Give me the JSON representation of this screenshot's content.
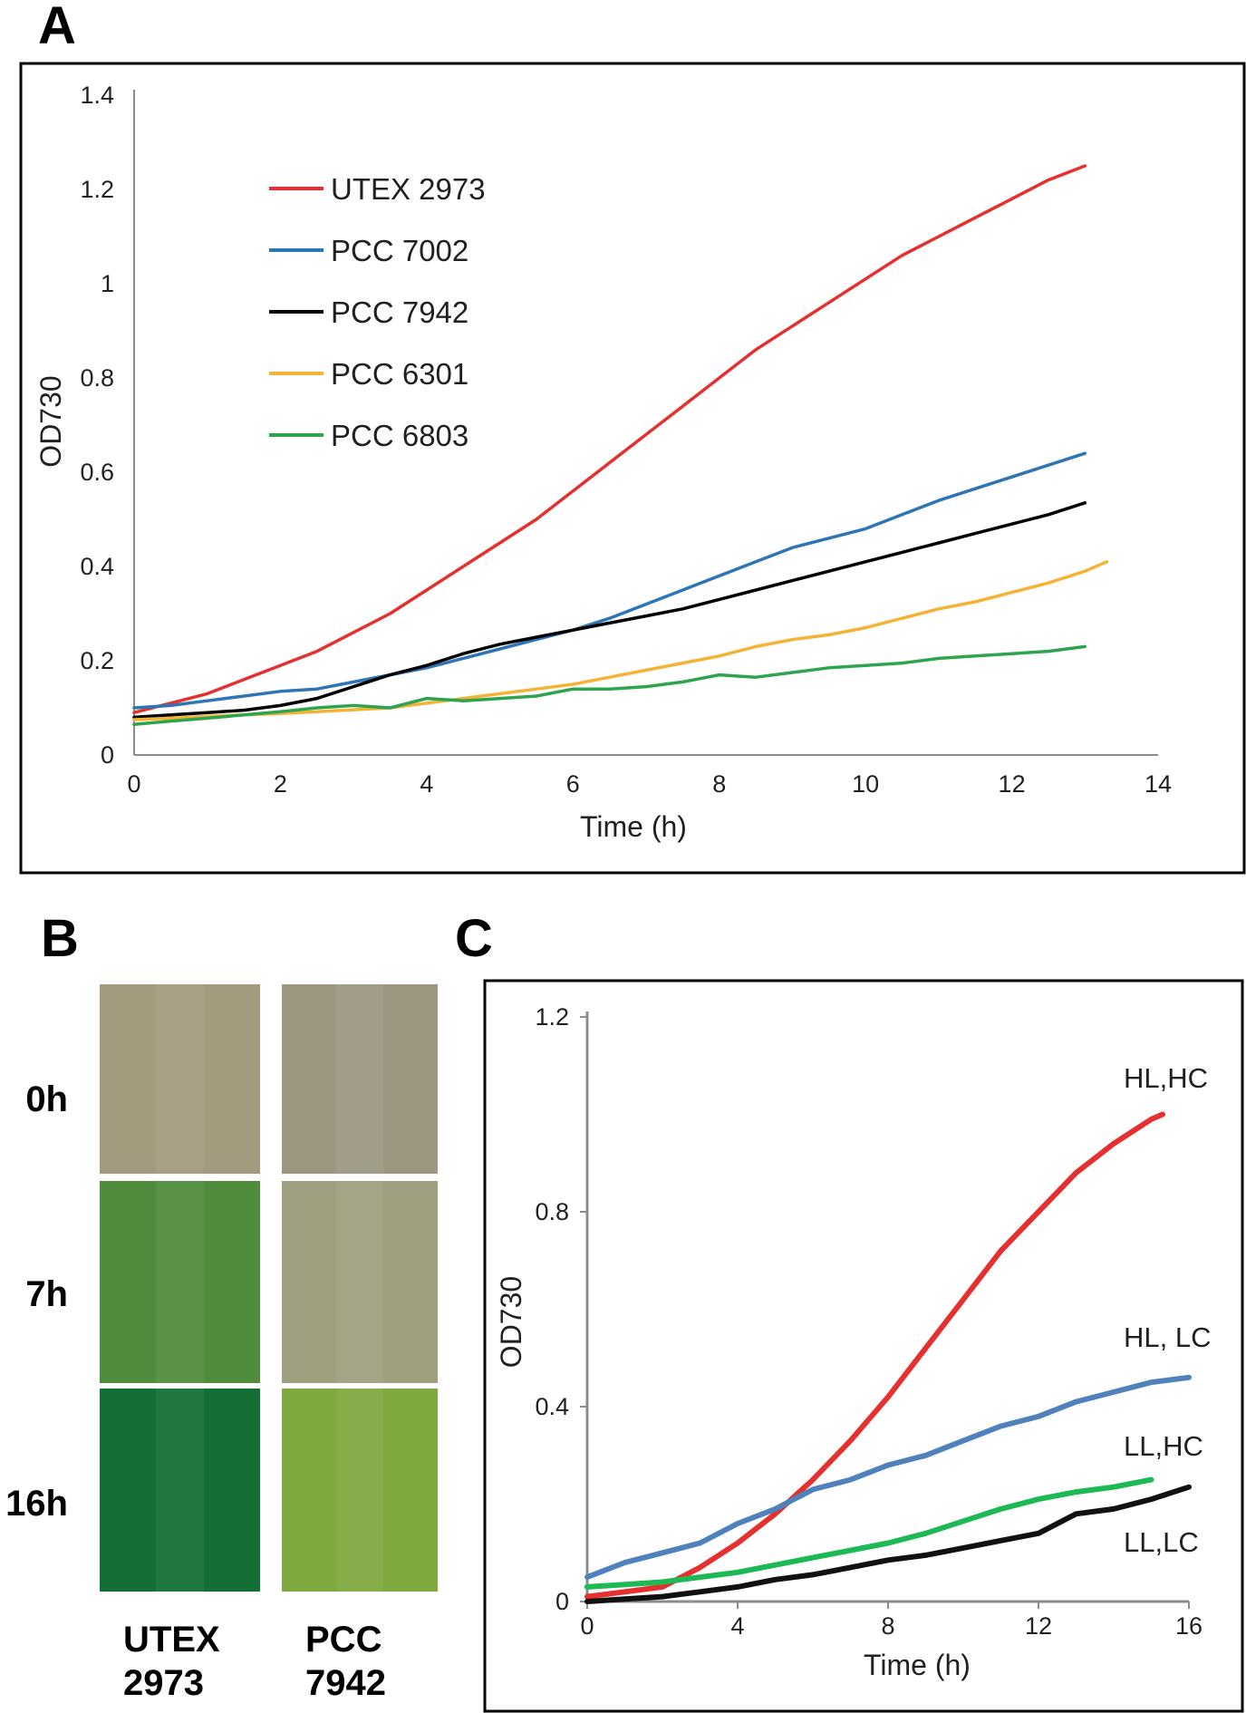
{
  "panels": {
    "a": "A",
    "b": "B",
    "c": "C"
  },
  "chart_data": [
    {
      "panel": "A",
      "type": "line",
      "title": "",
      "xlabel": "Time (h)",
      "ylabel": "OD730",
      "xlim": [
        0,
        14
      ],
      "ylim": [
        0,
        1.4
      ],
      "xticks": [
        "0",
        "2",
        "4",
        "6",
        "8",
        "10",
        "12",
        "14"
      ],
      "yticks": [
        "0",
        "0.2",
        "0.4",
        "0.6",
        "0.8",
        "1",
        "1.2",
        "1.4"
      ],
      "grid": false,
      "legend_position": "top-left",
      "series": [
        {
          "name": "UTEX 2973",
          "color": "#e4312f",
          "x": [
            0,
            0.5,
            1,
            1.5,
            2,
            2.5,
            3,
            3.5,
            4,
            4.5,
            5,
            5.5,
            6,
            6.5,
            7,
            7.5,
            8,
            8.5,
            9,
            9.5,
            10,
            10.5,
            11,
            11.5,
            12,
            12.5,
            13
          ],
          "y": [
            0.09,
            0.11,
            0.13,
            0.16,
            0.19,
            0.22,
            0.26,
            0.3,
            0.35,
            0.4,
            0.45,
            0.5,
            0.56,
            0.62,
            0.68,
            0.74,
            0.8,
            0.86,
            0.91,
            0.96,
            1.01,
            1.06,
            1.1,
            1.14,
            1.18,
            1.22,
            1.25
          ]
        },
        {
          "name": "PCC 7002",
          "color": "#2e75b6",
          "x": [
            0,
            0.5,
            1,
            1.5,
            2,
            2.5,
            3,
            3.5,
            4,
            4.5,
            5,
            5.5,
            6,
            6.5,
            7,
            7.5,
            8,
            8.5,
            9,
            9.5,
            10,
            10.5,
            11,
            11.5,
            12,
            12.5,
            13
          ],
          "y": [
            0.1,
            0.105,
            0.115,
            0.125,
            0.135,
            0.14,
            0.155,
            0.17,
            0.185,
            0.205,
            0.225,
            0.245,
            0.265,
            0.29,
            0.32,
            0.35,
            0.38,
            0.41,
            0.44,
            0.46,
            0.48,
            0.51,
            0.54,
            0.565,
            0.59,
            0.615,
            0.64
          ]
        },
        {
          "name": "PCC 7942",
          "color": "#000000",
          "x": [
            0,
            0.5,
            1,
            1.5,
            2,
            2.5,
            3,
            3.5,
            4,
            4.5,
            5,
            5.5,
            6,
            6.5,
            7,
            7.5,
            8,
            8.5,
            9,
            9.5,
            10,
            10.5,
            11,
            11.5,
            12,
            12.5,
            13
          ],
          "y": [
            0.08,
            0.085,
            0.09,
            0.095,
            0.105,
            0.12,
            0.145,
            0.17,
            0.19,
            0.215,
            0.235,
            0.25,
            0.265,
            0.28,
            0.295,
            0.31,
            0.33,
            0.35,
            0.37,
            0.39,
            0.41,
            0.43,
            0.45,
            0.47,
            0.49,
            0.51,
            0.535
          ]
        },
        {
          "name": "PCC 6301",
          "color": "#f5b335",
          "x": [
            0,
            0.5,
            1,
            1.5,
            2,
            2.5,
            3,
            3.5,
            4,
            4.5,
            5,
            5.5,
            6,
            6.5,
            7,
            7.5,
            8,
            8.5,
            9,
            9.5,
            10,
            10.5,
            11,
            11.5,
            12,
            12.5,
            13,
            13.3
          ],
          "y": [
            0.075,
            0.078,
            0.082,
            0.085,
            0.088,
            0.092,
            0.096,
            0.1,
            0.11,
            0.12,
            0.13,
            0.14,
            0.15,
            0.165,
            0.18,
            0.195,
            0.21,
            0.23,
            0.245,
            0.255,
            0.27,
            0.29,
            0.31,
            0.325,
            0.345,
            0.365,
            0.39,
            0.41
          ]
        },
        {
          "name": "PCC 6803",
          "color": "#2ea44f",
          "x": [
            0,
            0.5,
            1,
            1.5,
            2,
            2.5,
            3,
            3.5,
            4,
            4.5,
            5,
            5.5,
            6,
            6.5,
            7,
            7.5,
            8,
            8.5,
            9,
            9.5,
            10,
            10.5,
            11,
            11.5,
            12,
            12.5,
            13
          ],
          "y": [
            0.065,
            0.072,
            0.078,
            0.085,
            0.092,
            0.1,
            0.105,
            0.1,
            0.12,
            0.115,
            0.12,
            0.125,
            0.14,
            0.14,
            0.145,
            0.155,
            0.17,
            0.165,
            0.175,
            0.185,
            0.19,
            0.195,
            0.205,
            0.21,
            0.215,
            0.22,
            0.23
          ]
        }
      ]
    },
    {
      "panel": "C",
      "type": "line",
      "title": "",
      "xlabel": "Time (h)",
      "ylabel": "OD730",
      "xlim": [
        0,
        16
      ],
      "ylim": [
        0,
        1.2
      ],
      "xticks": [
        "0",
        "4",
        "8",
        "12",
        "16"
      ],
      "yticks": [
        "0",
        "0.4",
        "0.8",
        "1.2"
      ],
      "grid": false,
      "series": [
        {
          "name": "HL,HC",
          "color": "#e4312f",
          "x": [
            0,
            1,
            2,
            3,
            4,
            5,
            6,
            7,
            8,
            9,
            10,
            11,
            12,
            13,
            14,
            15,
            15.3
          ],
          "y": [
            0.01,
            0.02,
            0.03,
            0.07,
            0.12,
            0.18,
            0.25,
            0.33,
            0.42,
            0.52,
            0.62,
            0.72,
            0.8,
            0.88,
            0.94,
            0.99,
            1.0
          ]
        },
        {
          "name": "HL, LC",
          "color": "#4f81bd",
          "x": [
            0,
            1,
            2,
            3,
            4,
            5,
            6,
            7,
            8,
            9,
            10,
            11,
            12,
            13,
            14,
            15,
            16
          ],
          "y": [
            0.05,
            0.08,
            0.1,
            0.12,
            0.16,
            0.19,
            0.23,
            0.25,
            0.28,
            0.3,
            0.33,
            0.36,
            0.38,
            0.41,
            0.43,
            0.45,
            0.46
          ]
        },
        {
          "name": "LL,HC",
          "color": "#1db954",
          "x": [
            0,
            1,
            2,
            3,
            4,
            5,
            6,
            7,
            8,
            9,
            10,
            11,
            12,
            13,
            14,
            15
          ],
          "y": [
            0.03,
            0.035,
            0.04,
            0.05,
            0.06,
            0.075,
            0.09,
            0.105,
            0.12,
            0.14,
            0.165,
            0.19,
            0.21,
            0.225,
            0.235,
            0.25
          ]
        },
        {
          "name": "LL,LC",
          "color": "#111111",
          "x": [
            0,
            1,
            2,
            3,
            4,
            5,
            6,
            7,
            8,
            9,
            10,
            11,
            12,
            13,
            14,
            15,
            16
          ],
          "y": [
            0.0,
            0.005,
            0.01,
            0.02,
            0.03,
            0.045,
            0.055,
            0.07,
            0.085,
            0.095,
            0.11,
            0.125,
            0.14,
            0.18,
            0.19,
            0.21,
            0.235
          ]
        }
      ]
    }
  ],
  "panel_b": {
    "rows": [
      "0h",
      "7h",
      "16h"
    ],
    "columns": [
      {
        "line1": "UTEX",
        "line2": "2973"
      },
      {
        "line1": "PCC",
        "line2": "7942"
      }
    ],
    "swatch_colors": [
      [
        "#a39b7e",
        "#9d9782"
      ],
      [
        "#4f8c3e",
        "#9ea07f"
      ],
      [
        "#136f35",
        "#7fa83e"
      ]
    ]
  }
}
